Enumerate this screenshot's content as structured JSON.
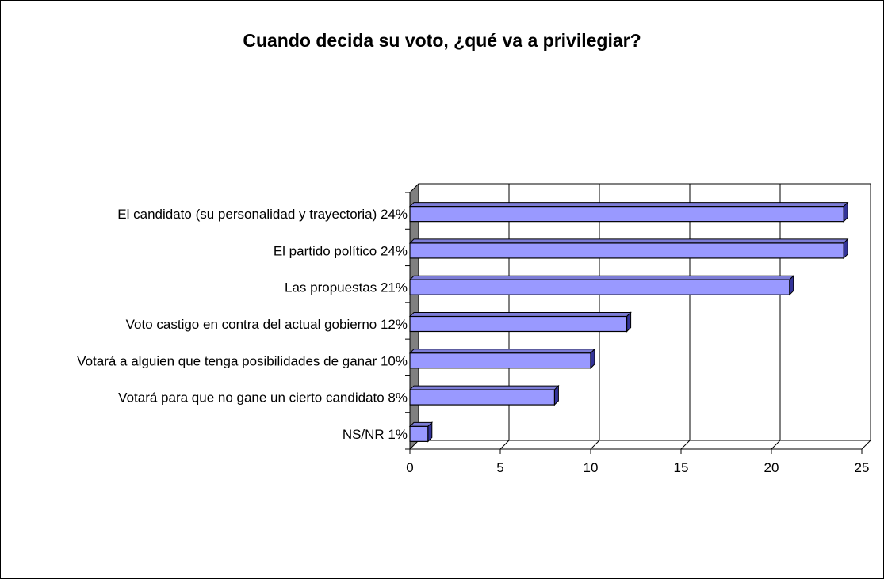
{
  "chart_data": {
    "type": "bar",
    "orientation": "horizontal",
    "title": "Cuando decida su voto, ¿qué va a privilegiar?",
    "categories": [
      "El candidato (su personalidad y trayectoria)  24%",
      "El partido político  24%",
      "Las propuestas  21%",
      "Voto castigo en contra del actual gobierno  12%",
      "Votará a alguien que tenga posibilidades de ganar  10%",
      "Votará para que no gane un cierto candidato  8%",
      "NS/NR  1%"
    ],
    "values": [
      24,
      24,
      21,
      12,
      10,
      8,
      1
    ],
    "xlim": [
      0,
      25
    ],
    "xticks": [
      "0",
      "5",
      "10",
      "15",
      "20",
      "25"
    ],
    "grid": true,
    "three_d": true,
    "colors": {
      "bar_fill": "#9999ff",
      "bar_side": "#333399",
      "bar_top": "#7c7cd6",
      "floor": "#808080",
      "grid": "#000000"
    }
  }
}
